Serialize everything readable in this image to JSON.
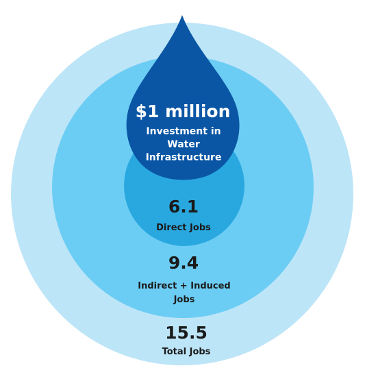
{
  "colors": {
    "outer_ring": "#bde5f8",
    "middle_ring": "#6ccdf4",
    "inner_circle": "#29a8e0",
    "drop": "#0a56a5"
  },
  "drop": {
    "icon": "water-drop-icon",
    "amount": "$1 million",
    "line1": "Investment in",
    "line2": "Water",
    "line3": "Infrastructure"
  },
  "direct": {
    "value": "6.1",
    "label": "Direct Jobs"
  },
  "indirect": {
    "value": "9.4",
    "line1": "Indirect + Induced",
    "line2": "Jobs"
  },
  "total": {
    "value": "15.5",
    "label": "Total Jobs"
  }
}
